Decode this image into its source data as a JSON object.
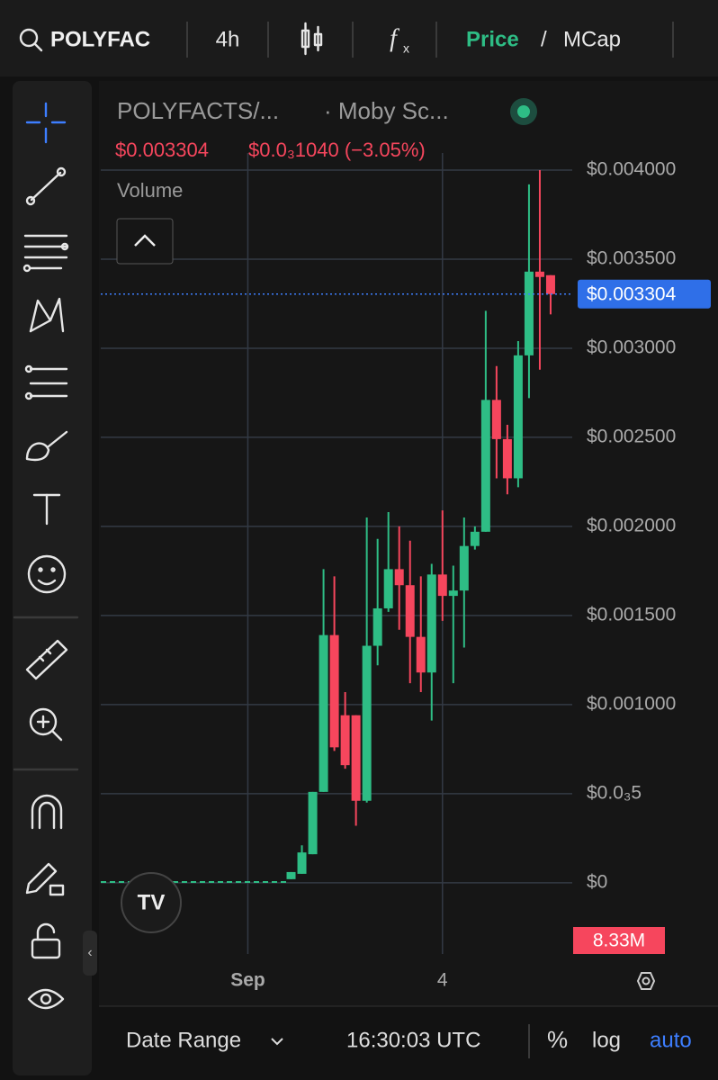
{
  "toolbar": {
    "symbol": "POLYFAC",
    "interval": "4h",
    "price_mode": "Price",
    "separator": "/",
    "mcap_mode": "MCap"
  },
  "header": {
    "pair": "POLYFACTS/...",
    "source": "· Moby Sc...",
    "price": "$0.003304",
    "change": "$0.0₃1040 (−3.05%)",
    "volume_label": "Volume",
    "volume_value": "8.33M"
  },
  "chart_data": {
    "type": "candlestick",
    "x": [
      0,
      1,
      2,
      3,
      4,
      5,
      6,
      7,
      8,
      9,
      10,
      11,
      12,
      13,
      14,
      15,
      16,
      17,
      18,
      19,
      20,
      21,
      22,
      23,
      24
    ],
    "open": [
      2e-05,
      5e-05,
      0.00016,
      0.00051,
      0.00139,
      0.00094,
      0.00094,
      0.00046,
      0.00133,
      0.00154,
      0.00176,
      0.00167,
      0.00138,
      0.00118,
      0.00173,
      0.00161,
      0.00164,
      0.00189,
      0.00197,
      0.00271,
      0.00249,
      0.00227,
      0.00296,
      0.00343,
      0.00341
    ],
    "close": [
      6e-05,
      0.00017,
      0.00051,
      0.00139,
      0.00076,
      0.00066,
      0.00046,
      0.00133,
      0.00154,
      0.00176,
      0.00167,
      0.00138,
      0.00118,
      0.00173,
      0.00161,
      0.00164,
      0.00189,
      0.00197,
      0.00271,
      0.00249,
      0.00227,
      0.00296,
      0.00343,
      0.0034,
      0.003304
    ],
    "high": [
      6e-05,
      0.00021,
      0.00051,
      0.00176,
      0.00172,
      0.00107,
      0.00094,
      0.00205,
      0.00193,
      0.00208,
      0.002,
      0.00192,
      0.00172,
      0.00179,
      0.00209,
      0.00178,
      0.00205,
      0.002,
      0.00321,
      0.0029,
      0.00257,
      0.00304,
      0.00392,
      0.004,
      0.00341
    ],
    "low": [
      2e-05,
      5e-05,
      0.00016,
      0.00051,
      0.00074,
      0.00064,
      0.00032,
      0.00045,
      0.00122,
      0.00152,
      0.00142,
      0.00112,
      0.00107,
      0.00091,
      0.00147,
      0.00112,
      0.00132,
      0.00187,
      0.00197,
      0.00227,
      0.00218,
      0.00222,
      0.00272,
      0.00288,
      0.00319
    ],
    "up_color": "#2ebd85",
    "down_color": "#f6465d",
    "last_price": 0.003304,
    "last_price_label": "$0.003304",
    "xlim": [
      -17.6,
      26
    ],
    "xticks": [
      {
        "value": -4,
        "label": "Sep"
      },
      {
        "value": 14,
        "label": "4"
      }
    ],
    "ylim": [
      -0.0004,
      0.0045
    ],
    "yticks": [
      {
        "value": 0.004,
        "label": "$0.004000"
      },
      {
        "value": 0.0035,
        "label": "$0.003500"
      },
      {
        "value": 0.003,
        "label": "$0.003000"
      },
      {
        "value": 0.0025,
        "label": "$0.002500"
      },
      {
        "value": 0.002,
        "label": "$0.002000"
      },
      {
        "value": 0.0015,
        "label": "$0.001500"
      },
      {
        "value": 0.001,
        "label": "$0.001000"
      },
      {
        "value": 0.0005,
        "label": "$0.0₃5"
      },
      {
        "value": 0,
        "label": "$0"
      }
    ],
    "grid": true
  },
  "footer": {
    "date_range": "Date Range",
    "time": "16:30:03 UTC",
    "percent": "%",
    "log": "log",
    "auto": "auto"
  }
}
